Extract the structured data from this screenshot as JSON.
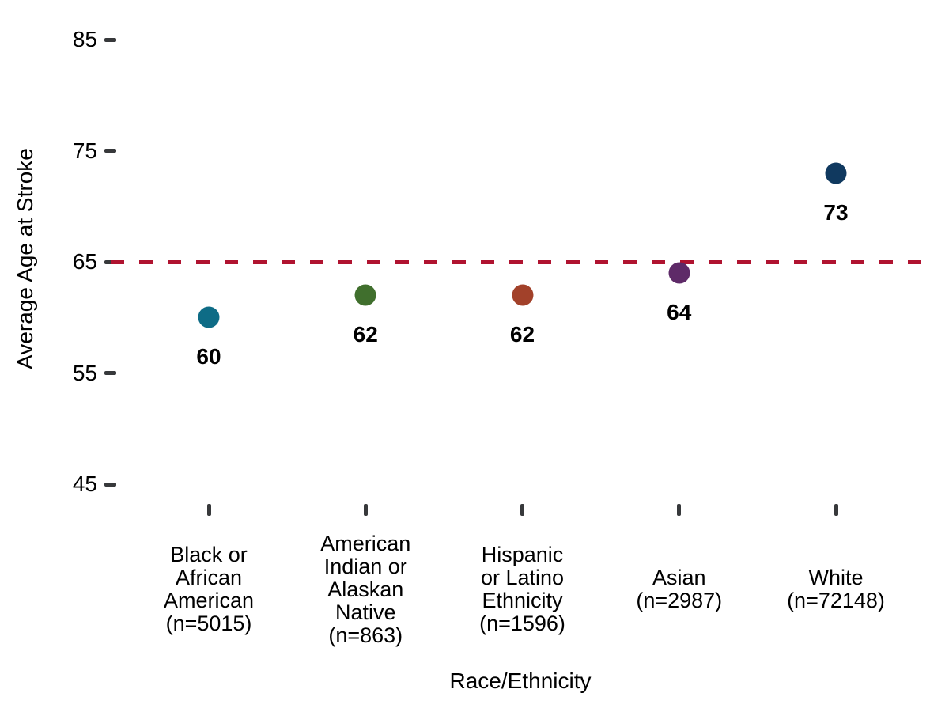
{
  "page": {
    "background": "#ffffff"
  },
  "chart_data": {
    "type": "scatter",
    "title": "",
    "xlabel": "Race/Ethnicity",
    "ylabel": "Average Age at Stroke",
    "ylim": [
      45,
      85
    ],
    "yticks": [
      85,
      75,
      65,
      55,
      45
    ],
    "grid": false,
    "legend": "none",
    "categories": [
      "Black or African American (n=5015)",
      "American Indian or Alaskan Native (n=863)",
      "Hispanic or Latino Ethnicity (n=1596)",
      "Asian (n=2987)",
      "White (n=72148)"
    ],
    "category_label_lines": [
      [
        "Black or",
        "African",
        "American",
        "(n=5015)"
      ],
      [
        "American",
        "Indian or",
        "Alaskan",
        "Native",
        "(n=863)"
      ],
      [
        "Hispanic",
        "or Latino",
        "Ethnicity",
        "(n=1596)"
      ],
      [
        "Asian",
        "(n=2987)"
      ],
      [
        "White",
        "(n=72148)"
      ]
    ],
    "values": [
      60,
      62,
      62,
      64,
      73
    ],
    "point_labels": [
      "60",
      "62",
      "62",
      "64",
      "73"
    ],
    "point_colors": [
      "#0e6c86",
      "#406f2d",
      "#a2412a",
      "#5e2a68",
      "#10395f"
    ],
    "reference_line": {
      "value": 65,
      "color": "#b01330",
      "style": "dashed"
    },
    "axis_color": "#37393b",
    "text_color": "#000000"
  }
}
